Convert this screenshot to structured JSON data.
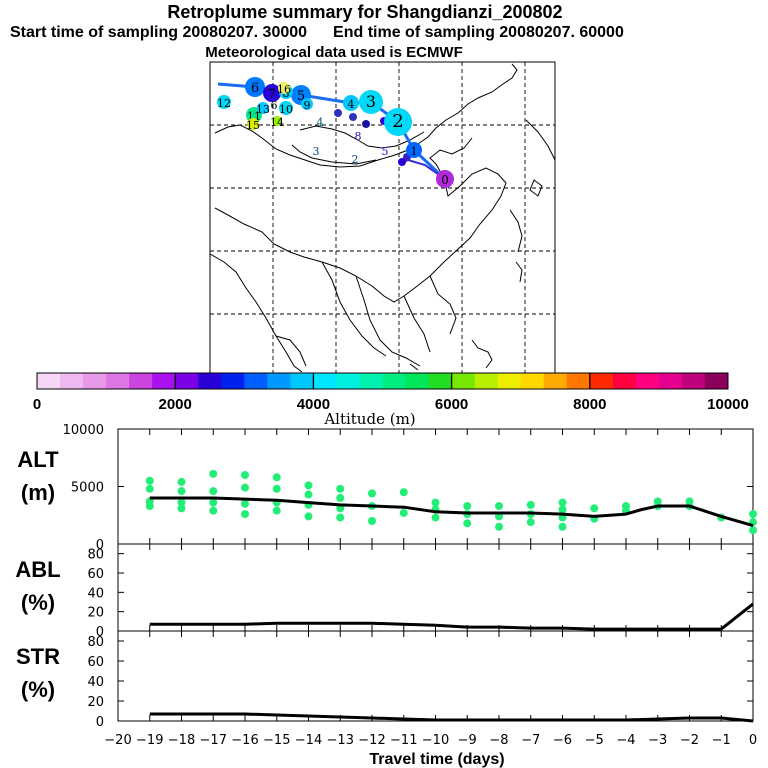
{
  "header": {
    "title": "Retroplume summary for Shangdianzi_200802",
    "start_label": "Start time of sampling 20080207. 30000",
    "end_label": "End time of sampling 20080207. 60000",
    "met_label": "Meteorological data used is ECMWF"
  },
  "colorbar": {
    "ticks": [
      "0",
      "2000",
      "4000",
      "6000",
      "8000",
      "10000"
    ],
    "label": "Altitude (m)",
    "colors": [
      "#f6d8f6",
      "#f0b8f0",
      "#e89ae8",
      "#dd77e6",
      "#cc44e0",
      "#aa11ee",
      "#7a00e6",
      "#2a00d8",
      "#0022ee",
      "#0060ff",
      "#0099ff",
      "#00c8ff",
      "#00e6ff",
      "#00f0e0",
      "#00f0b0",
      "#00ee80",
      "#00e658",
      "#22dd22",
      "#77e600",
      "#b8ee00",
      "#eeee00",
      "#ffd800",
      "#ffaa00",
      "#ff7700",
      "#ff2a00",
      "#ff0040",
      "#ff0080",
      "#e60090",
      "#c0007a",
      "#8a005a"
    ]
  },
  "map_labels": {
    "trajectory_markers": [
      "0",
      "1",
      "2",
      "3",
      "4",
      "5",
      "6",
      "7",
      "8",
      "9",
      "10",
      "11",
      "12",
      "13",
      "14",
      "15",
      "16"
    ],
    "interior_markers": [
      "2",
      "3",
      "4",
      "5",
      "6",
      "8"
    ]
  },
  "chart_data": [
    {
      "type": "line",
      "name": "ALT",
      "ylabel": "ALT\n(m)",
      "ylabel_lines": [
        "ALT",
        "(m)"
      ],
      "ylim": [
        0,
        10000
      ],
      "yticks": [
        "10000",
        "5000",
        "0"
      ],
      "x": [
        0,
        -1,
        -2,
        -2.5,
        -3,
        -3.5,
        -4,
        -5,
        -6,
        -7,
        -8,
        -9,
        -10,
        -11,
        -12,
        -13,
        -14,
        -15,
        -16,
        -17,
        -18,
        -19
      ],
      "y": [
        1600,
        2400,
        3300,
        3300,
        3300,
        3000,
        2600,
        2400,
        2600,
        2700,
        2700,
        2700,
        2800,
        3200,
        3300,
        3400,
        3600,
        3800,
        3900,
        4000,
        4000,
        4000
      ],
      "scatter": [
        {
          "x": -19,
          "y": 3300
        },
        {
          "x": -19,
          "y": 3700
        },
        {
          "x": -19,
          "y": 4800
        },
        {
          "x": -19,
          "y": 5500
        },
        {
          "x": -18,
          "y": 3100
        },
        {
          "x": -18,
          "y": 3600
        },
        {
          "x": -18,
          "y": 4600
        },
        {
          "x": -18,
          "y": 5400
        },
        {
          "x": -17,
          "y": 2900
        },
        {
          "x": -17,
          "y": 3600
        },
        {
          "x": -17,
          "y": 4600
        },
        {
          "x": -17,
          "y": 6100
        },
        {
          "x": -16,
          "y": 2600
        },
        {
          "x": -16,
          "y": 3500
        },
        {
          "x": -16,
          "y": 4900
        },
        {
          "x": -16,
          "y": 6000
        },
        {
          "x": -15,
          "y": 2900
        },
        {
          "x": -15,
          "y": 3600
        },
        {
          "x": -15,
          "y": 4800
        },
        {
          "x": -15,
          "y": 5800
        },
        {
          "x": -14,
          "y": 2400
        },
        {
          "x": -14,
          "y": 3400
        },
        {
          "x": -14,
          "y": 4300
        },
        {
          "x": -14,
          "y": 5100
        },
        {
          "x": -13,
          "y": 2300
        },
        {
          "x": -13,
          "y": 3100
        },
        {
          "x": -13,
          "y": 4000
        },
        {
          "x": -13,
          "y": 4800
        },
        {
          "x": -12,
          "y": 2000
        },
        {
          "x": -12,
          "y": 3300
        },
        {
          "x": -12,
          "y": 4400
        },
        {
          "x": -11,
          "y": 2700
        },
        {
          "x": -11,
          "y": 4500
        },
        {
          "x": -10,
          "y": 2300
        },
        {
          "x": -10,
          "y": 3000
        },
        {
          "x": -10,
          "y": 3600
        },
        {
          "x": -9,
          "y": 1800
        },
        {
          "x": -9,
          "y": 2600
        },
        {
          "x": -9,
          "y": 3300
        },
        {
          "x": -8,
          "y": 1500
        },
        {
          "x": -8,
          "y": 2400
        },
        {
          "x": -8,
          "y": 3300
        },
        {
          "x": -7,
          "y": 1900
        },
        {
          "x": -7,
          "y": 2600
        },
        {
          "x": -7,
          "y": 3400
        },
        {
          "x": -6,
          "y": 1500
        },
        {
          "x": -6,
          "y": 2300
        },
        {
          "x": -6,
          "y": 3000
        },
        {
          "x": -6,
          "y": 3600
        },
        {
          "x": -5,
          "y": 2200
        },
        {
          "x": -5,
          "y": 3100
        },
        {
          "x": -4,
          "y": 2900
        },
        {
          "x": -4,
          "y": 3300
        },
        {
          "x": -3,
          "y": 3300
        },
        {
          "x": -3,
          "y": 3700
        },
        {
          "x": -2,
          "y": 3300
        },
        {
          "x": -2,
          "y": 3700
        },
        {
          "x": -1,
          "y": 2300
        },
        {
          "x": 0,
          "y": 1200
        },
        {
          "x": 0,
          "y": 1900
        },
        {
          "x": 0,
          "y": 2600
        }
      ],
      "marker_color": "#22ee77"
    },
    {
      "type": "line",
      "name": "ABL",
      "ylabel": "ABL\n(%)",
      "ylabel_lines": [
        "ABL",
        "(%)"
      ],
      "ylim": [
        0,
        90
      ],
      "yticks": [
        "80",
        "60",
        "40",
        "20",
        "0"
      ],
      "x": [
        0,
        -1,
        -2,
        -3,
        -4,
        -5,
        -6,
        -7,
        -8,
        -9,
        -10,
        -11,
        -12,
        -13,
        -14,
        -15,
        -16,
        -17,
        -18,
        -19
      ],
      "y": [
        28,
        2,
        2,
        2,
        2,
        2,
        3,
        3,
        4,
        4,
        6,
        7,
        8,
        8,
        8,
        8,
        7,
        7,
        7,
        7
      ]
    },
    {
      "type": "line",
      "name": "STR",
      "ylabel": "STR\n(%)",
      "ylabel_lines": [
        "STR",
        "(%)"
      ],
      "ylim": [
        0,
        90
      ],
      "yticks": [
        "80",
        "60",
        "40",
        "20",
        "0"
      ],
      "x": [
        0,
        -1,
        -2,
        -3,
        -4,
        -5,
        -6,
        -7,
        -8,
        -9,
        -10,
        -11,
        -12,
        -13,
        -14,
        -15,
        -16,
        -17,
        -18,
        -19
      ],
      "y": [
        0,
        3,
        3,
        2,
        1,
        1,
        1,
        1,
        1,
        1,
        1,
        2,
        3,
        4,
        5,
        6,
        7,
        7,
        7,
        7
      ]
    }
  ],
  "xaxis": {
    "ticks": [
      -20,
      -19,
      -18,
      -17,
      -16,
      -15,
      -14,
      -13,
      -12,
      -11,
      -10,
      -9,
      -8,
      -7,
      -6,
      -5,
      -4,
      -3,
      -2,
      -1,
      0
    ],
    "tick_labels": [
      "−20",
      "−19",
      "−18",
      "−17",
      "−16",
      "−15",
      "−14",
      "−13",
      "−12",
      "−11",
      "−10",
      "−9",
      "−8",
      "−7",
      "−6",
      "−5",
      "−4",
      "−3",
      "−2",
      "−1",
      "0"
    ],
    "label": "Travel time (days)"
  }
}
